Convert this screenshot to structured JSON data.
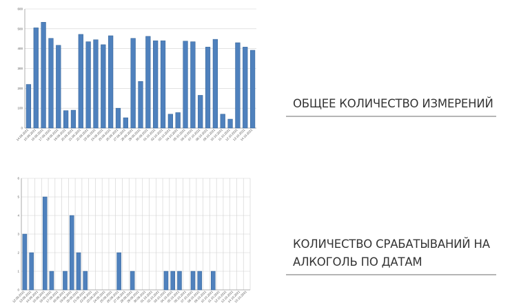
{
  "captions": {
    "measurements": "ОБЩЕЕ КОЛИЧЕСТВО ИЗМЕРЕНИЙ",
    "alcohol_line1": "КОЛИЧЕСТВО СРАБАТЫВАНИЙ НА",
    "alcohol_line2": "АЛКОГОЛЬ ПО ДАТАМ"
  },
  "colors": {
    "bar": "#4f81bd",
    "grid": "#cfcfcf"
  },
  "chart_data": [
    {
      "type": "bar",
      "title": "ОБЩЕЕ КОЛИЧЕСТВО ИЗМЕРЕНИЙ",
      "ylim": [
        0,
        600
      ],
      "yticks": [
        0,
        100,
        200,
        300,
        400,
        500,
        600
      ],
      "grid": "horizontal",
      "categories": [
        "14.09.2021",
        "15.09.2021",
        "16.09.2021",
        "17.09.2021",
        "18.09.2021",
        "19.09.2021",
        "20.09.2021",
        "21.09.2021",
        "22.09.2021",
        "23.09.2021",
        "24.09.2021",
        "25.09.2021",
        "26.09.2021",
        "27.09.2021",
        "28.09.2021",
        "29.09.2021",
        "30.09.2021",
        "01.10.2021",
        "02.10.2021",
        "03.10.2021",
        "04.10.2021",
        "05.10.2021",
        "06.10.2021",
        "07.10.2021",
        "08.10.2021",
        "09.10.2021",
        "10.10.2021",
        "11.10.2021",
        "12.10.2021",
        "13.10.2021",
        "14.10.2021"
      ],
      "values": [
        220,
        505,
        533,
        452,
        417,
        88,
        90,
        472,
        435,
        445,
        420,
        465,
        100,
        52,
        452,
        235,
        462,
        440,
        440,
        70,
        78,
        438,
        435,
        165,
        408,
        447,
        70,
        45,
        430,
        408,
        392
      ]
    },
    {
      "type": "bar",
      "title": "КОЛИЧЕСТВО СРАБАТЫВАНИЙ НА АЛКОГОЛЬ ПО ДАТАМ",
      "ylim": [
        0,
        6
      ],
      "yticks": [
        0,
        1,
        2,
        3,
        4,
        5,
        6
      ],
      "grid": "both",
      "categories": [
        "12.09.2021",
        "13.09.2021",
        "14.09.2021",
        "15.09.2021",
        "16.09.2021",
        "17.09.2021",
        "18.09.2021",
        "19.09.2021",
        "20.09.2021",
        "21.09.2021",
        "22.09.2021",
        "23.09.2021",
        "24.09.2021",
        "25.09.2021",
        "26.09.2021",
        "27.09.2021",
        "28.09.2021",
        "29.09.2021",
        "30.09.2021",
        "01.10.2021",
        "02.10.2021",
        "03.10.2021",
        "04.10.2021",
        "05.10.2021",
        "06.10.2021",
        "07.10.2021",
        "08.10.2021",
        "09.10.2021",
        "10.10.2021",
        "11.10.2021",
        "12.10.2021",
        "13.10.2021",
        "14.10.2021",
        "15.10.2021"
      ],
      "values": [
        3,
        2,
        0,
        5,
        1,
        0,
        1,
        4,
        2,
        1,
        0,
        0,
        0,
        0,
        2,
        0,
        1,
        0,
        0,
        0,
        0,
        1,
        1,
        1,
        0,
        1,
        1,
        0,
        1,
        0,
        0,
        0,
        0,
        0
      ]
    }
  ]
}
